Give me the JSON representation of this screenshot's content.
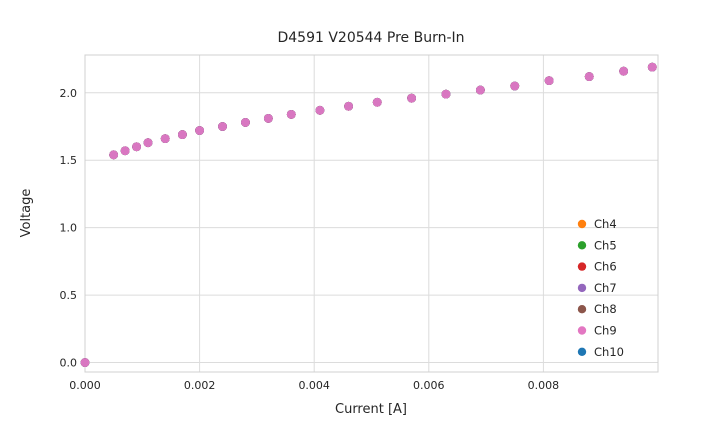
{
  "chart_data": {
    "type": "scatter",
    "title": "D4591 V20544 Pre Burn-In",
    "xlabel": "Current [A]",
    "ylabel": "Voltage",
    "xlim": [
      0.0,
      0.01
    ],
    "ylim": [
      -0.07,
      2.28
    ],
    "grid": true,
    "legend_position": "lower right",
    "xticks": {
      "values": [
        0.0,
        0.002,
        0.004,
        0.006,
        0.008
      ],
      "labels": [
        "0.000",
        "0.002",
        "0.004",
        "0.006",
        "0.008"
      ]
    },
    "yticks": {
      "values": [
        0.0,
        0.5,
        1.0,
        1.5,
        2.0
      ],
      "labels": [
        "0.0",
        "0.5",
        "1.0",
        "1.5",
        "2.0"
      ]
    },
    "x": [
      0.0,
      0.0005,
      0.0007,
      0.0009,
      0.0011,
      0.0014,
      0.0017,
      0.002,
      0.0024,
      0.0028,
      0.0032,
      0.0036,
      0.0041,
      0.0046,
      0.0051,
      0.0057,
      0.0063,
      0.0069,
      0.0075,
      0.0081,
      0.0088,
      0.0094,
      0.0099
    ],
    "y": [
      0.0,
      1.54,
      1.57,
      1.6,
      1.63,
      1.66,
      1.69,
      1.72,
      1.75,
      1.78,
      1.81,
      1.84,
      1.87,
      1.9,
      1.93,
      1.96,
      1.99,
      2.02,
      2.05,
      2.09,
      2.12,
      2.16,
      2.19
    ],
    "series_overlap": true,
    "series": [
      {
        "name": "Ch4",
        "color": "#ff7f0e"
      },
      {
        "name": "Ch5",
        "color": "#2ca02c"
      },
      {
        "name": "Ch6",
        "color": "#d62728"
      },
      {
        "name": "Ch7",
        "color": "#9467bd"
      },
      {
        "name": "Ch8",
        "color": "#8c564b"
      },
      {
        "name": "Ch9",
        "color": "#e377c2",
        "on_top": true
      },
      {
        "name": "Ch10",
        "color": "#1f77b4"
      }
    ]
  }
}
